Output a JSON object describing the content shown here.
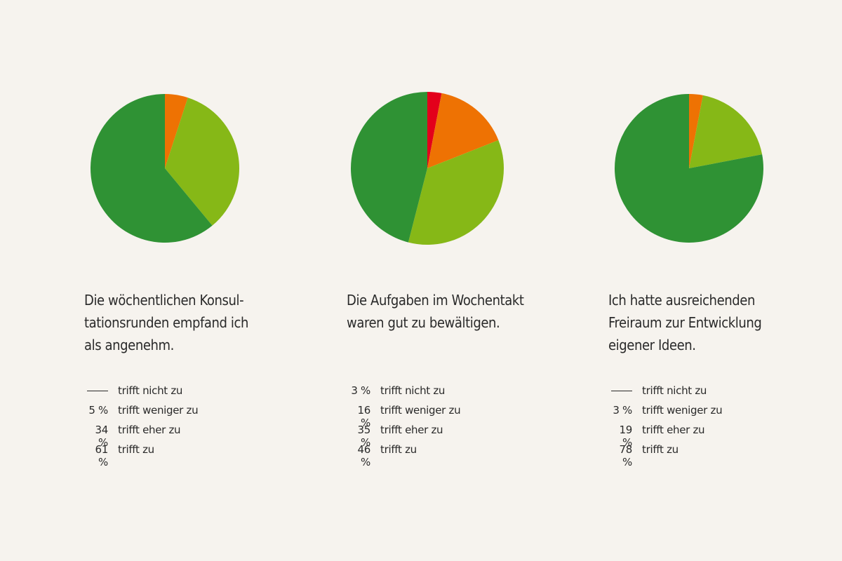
{
  "chart_data": [
    {
      "type": "pie",
      "title": "Die wöchentlichen Konsul-\ntationsrunden empfand ich\nals angenehm.",
      "slices": [
        {
          "label": "trifft nicht zu",
          "value": null,
          "display": "",
          "color": "#e3001b"
        },
        {
          "label": "trifft weniger zu",
          "value": 5,
          "display": "5 %",
          "color": "#ee7203"
        },
        {
          "label": "trifft eher zu",
          "value": 34,
          "display": "34 %",
          "color": "#86b817"
        },
        {
          "label": "trifft zu",
          "value": 61,
          "display": "61 %",
          "color": "#2f9234"
        }
      ]
    },
    {
      "type": "pie",
      "title": "Die Aufgaben im Wochentakt\nwaren gut zu bewältigen.",
      "slices": [
        {
          "label": "trifft nicht zu",
          "value": 3,
          "display": "3 %",
          "color": "#e3001b"
        },
        {
          "label": "trifft weniger zu",
          "value": 16,
          "display": "16 %",
          "color": "#ee7203"
        },
        {
          "label": "trifft eher zu",
          "value": 35,
          "display": "35 %",
          "color": "#86b817"
        },
        {
          "label": "trifft zu",
          "value": 46,
          "display": "46 %",
          "color": "#2f9234"
        }
      ]
    },
    {
      "type": "pie",
      "title": "Ich hatte ausreichenden\nFreiraum zur Entwicklung\neigener Ideen.",
      "slices": [
        {
          "label": "trifft nicht zu",
          "value": null,
          "display": "",
          "color": "#e3001b"
        },
        {
          "label": "trifft weniger zu",
          "value": 3,
          "display": "3 %",
          "color": "#ee7203"
        },
        {
          "label": "trifft eher zu",
          "value": 19,
          "display": "19 %",
          "color": "#86b817"
        },
        {
          "label": "trifft zu",
          "value": 78,
          "display": "78 %",
          "color": "#2f9234"
        }
      ]
    }
  ]
}
